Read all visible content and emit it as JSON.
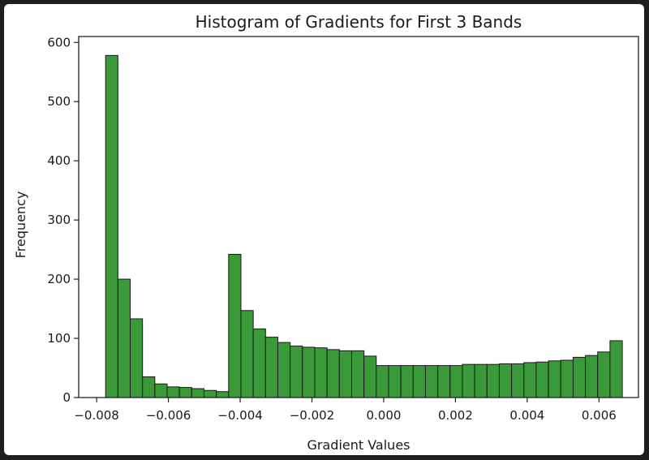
{
  "chart_data": {
    "type": "bar",
    "title": "Histogram of Gradients for First 3 Bands",
    "xlabel": "Gradient Values",
    "ylabel": "Frequency",
    "xlim": [
      -0.0085,
      0.0071
    ],
    "ylim": [
      0,
      610
    ],
    "xticks": [
      -0.008,
      -0.006,
      -0.004,
      -0.002,
      0.0,
      0.002,
      0.004,
      0.006
    ],
    "xtick_labels": [
      "−0.008",
      "−0.006",
      "−0.004",
      "−0.002",
      "0.000",
      "0.002",
      "0.004",
      "0.006"
    ],
    "yticks": [
      0,
      100,
      200,
      300,
      400,
      500,
      600
    ],
    "ytick_labels": [
      "0",
      "100",
      "200",
      "300",
      "400",
      "500",
      "600"
    ],
    "grid": false,
    "bar_color": "#3a9a3a",
    "edge_color": "#1a1a1a",
    "bin_range": [
      -0.00775,
      0.00665
    ],
    "values": [
      578,
      200,
      133,
      35,
      23,
      18,
      17,
      15,
      12,
      10,
      242,
      147,
      116,
      102,
      93,
      87,
      85,
      84,
      81,
      79,
      79,
      70,
      54,
      54,
      54,
      54,
      54,
      54,
      54,
      56,
      56,
      56,
      57,
      57,
      59,
      60,
      62,
      63,
      68,
      71,
      77,
      96
    ]
  }
}
